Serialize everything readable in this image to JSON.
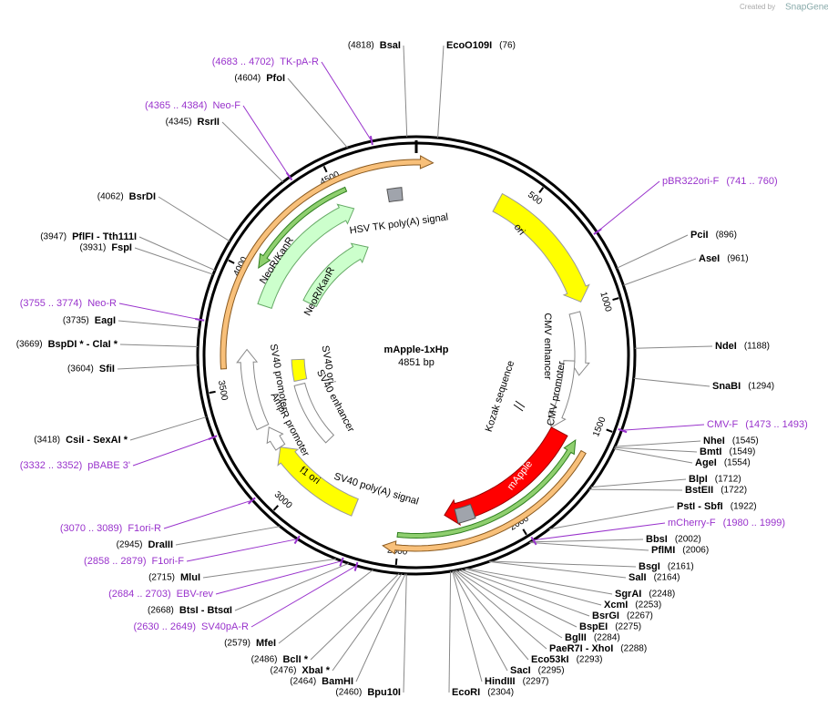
{
  "watermark": {
    "prefix": "Created by",
    "brand": "SnapGene"
  },
  "plasmid": {
    "name": "mApple-1xHp",
    "length": "4851 bp"
  },
  "ticks": [
    500,
    1000,
    1500,
    2000,
    2500,
    3000,
    3500,
    4000,
    4500
  ],
  "sites": [
    {
      "name": "BsaI",
      "pos": "(4818)"
    },
    {
      "name": "EcoO109I",
      "pos": "(76)"
    },
    {
      "name": "PciI",
      "pos": "(896)"
    },
    {
      "name": "AseI",
      "pos": "(961)"
    },
    {
      "name": "NdeI",
      "pos": "(1188)"
    },
    {
      "name": "SnaBI",
      "pos": "(1294)"
    },
    {
      "name": "NheI",
      "pos": "(1545)"
    },
    {
      "name": "BmtI",
      "pos": "(1549)"
    },
    {
      "name": "AgeI",
      "pos": "(1554)"
    },
    {
      "name": "BlpI",
      "pos": "(1712)"
    },
    {
      "name": "BstEII",
      "pos": "(1722)"
    },
    {
      "name": "PstI - SbfI",
      "pos": "(1922)"
    },
    {
      "name": "BbsI",
      "pos": "(2002)"
    },
    {
      "name": "PflMI",
      "pos": "(2006)"
    },
    {
      "name": "BsgI",
      "pos": "(2161)"
    },
    {
      "name": "SalI",
      "pos": "(2164)"
    },
    {
      "name": "SgrAI",
      "pos": "(2248)"
    },
    {
      "name": "XcmI",
      "pos": "(2253)"
    },
    {
      "name": "BsrGI",
      "pos": "(2267)"
    },
    {
      "name": "BspEI",
      "pos": "(2275)"
    },
    {
      "name": "BglII",
      "pos": "(2284)"
    },
    {
      "name": "PaeR7I - XhoI",
      "pos": "(2288)"
    },
    {
      "name": "Eco53kI",
      "pos": "(2293)"
    },
    {
      "name": "SacI",
      "pos": "(2295)"
    },
    {
      "name": "HindIII",
      "pos": "(2297)"
    },
    {
      "name": "EcoRI",
      "pos": "(2304)"
    },
    {
      "name": "Bpu10I",
      "pos": "(2460)"
    },
    {
      "name": "BamHI",
      "pos": "(2464)"
    },
    {
      "name": "XbaI *",
      "pos": "(2476)"
    },
    {
      "name": "BclI *",
      "pos": "(2486)"
    },
    {
      "name": "MfeI",
      "pos": "(2579)"
    },
    {
      "name": "BtsI - BtsαI",
      "pos": "(2668)"
    },
    {
      "name": "MluI",
      "pos": "(2715)"
    },
    {
      "name": "DraIII",
      "pos": "(2945)"
    },
    {
      "name": "CsiI - SexAI *",
      "pos": "(3418)"
    },
    {
      "name": "SfiI",
      "pos": "(3604)"
    },
    {
      "name": "BspDI * - ClaI *",
      "pos": "(3669)"
    },
    {
      "name": "EagI",
      "pos": "(3735)"
    },
    {
      "name": "FspI",
      "pos": "(3931)"
    },
    {
      "name": "PflFI - Tth111I",
      "pos": "(3947)"
    },
    {
      "name": "BsrDI",
      "pos": "(4062)"
    },
    {
      "name": "RsrII",
      "pos": "(4345)"
    },
    {
      "name": "PfoI",
      "pos": "(4604)"
    }
  ],
  "primers": [
    {
      "name": "pBR322ori-F",
      "range": "(741 .. 760)"
    },
    {
      "name": "CMV-F",
      "range": "(1473 .. 1493)"
    },
    {
      "name": "mCherry-F",
      "range": "(1980 .. 1999)"
    },
    {
      "name": "SV40pA-R",
      "range": "(2630 .. 2649)"
    },
    {
      "name": "EBV-rev",
      "range": "(2684 .. 2703)"
    },
    {
      "name": "F1ori-F",
      "range": "(2858 .. 2879)"
    },
    {
      "name": "F1ori-R",
      "range": "(3070 .. 3089)"
    },
    {
      "name": "pBABE 3'",
      "range": "(3332 .. 3352)"
    },
    {
      "name": "Neo-R",
      "range": "(3755 .. 3774)"
    },
    {
      "name": "Neo-F",
      "range": "(4365 .. 4384)"
    },
    {
      "name": "TK-pA-R",
      "range": "(4683 .. 4702)"
    }
  ],
  "features": [
    "ori",
    "CMV enhancer",
    "CMV promoter",
    "Kozak sequence",
    "mApple",
    "SV40 poly(A) signal",
    "f1 ori",
    "AmpR promoter",
    "SV40 promoter",
    "SV40 ori",
    "SV40 enhancer",
    "NeoR/KanR",
    "NeoR/KanR",
    "HSV TK poly(A) signal"
  ]
}
